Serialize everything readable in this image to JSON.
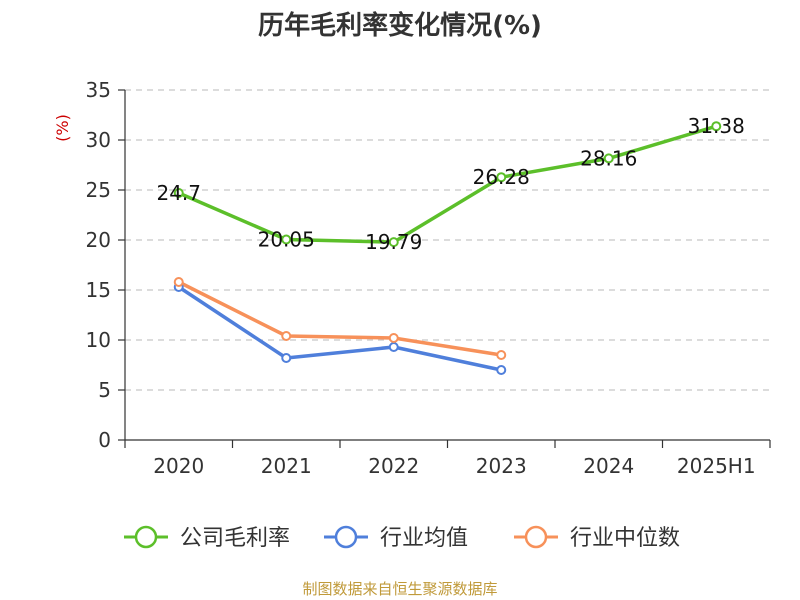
{
  "chart_data": {
    "type": "line",
    "title": "历年毛利率变化情况(%)",
    "xlabel": "",
    "ylabel": "(%)",
    "categories": [
      "2020",
      "2021",
      "2022",
      "2023",
      "2024",
      "2025H1"
    ],
    "ylim": [
      0,
      35
    ],
    "yticks": [
      0,
      5,
      10,
      15,
      20,
      25,
      30,
      35
    ],
    "grid": true,
    "legend_position": "bottom",
    "series": [
      {
        "name": "公司毛利率",
        "color": "#5cbf2a",
        "values": [
          24.7,
          20.05,
          19.79,
          26.28,
          28.16,
          31.38
        ],
        "labels": [
          "24.7",
          "20.05",
          "19.79",
          "26.28",
          "28.16",
          "31.38"
        ]
      },
      {
        "name": "行业均值",
        "color": "#4f7fdb",
        "values": [
          15.3,
          8.2,
          9.3,
          7.0,
          null,
          null
        ]
      },
      {
        "name": "行业中位数",
        "color": "#f7915a",
        "values": [
          15.8,
          10.4,
          10.2,
          8.5,
          null,
          null
        ]
      }
    ]
  },
  "source_text": "制图数据来自恒生聚源数据库",
  "colors": {
    "axis": "#333333",
    "grid": "#c8c8c8",
    "ylabel": "#cc0000",
    "source": "#c09a3a"
  }
}
